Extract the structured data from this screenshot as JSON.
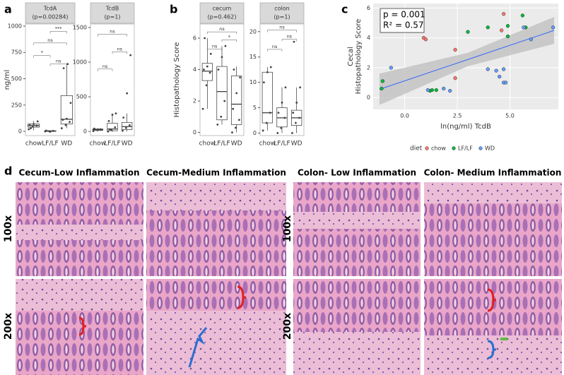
{
  "labels": [
    "a",
    "b",
    "c",
    "d"
  ],
  "chart_data": [
    {
      "type": "box",
      "title": "TcdA",
      "subtitle": "(p=0.00284)",
      "ylabel": "ng/ml",
      "categories": [
        "chow",
        "LF/LF",
        "WD"
      ],
      "boxes": [
        {
          "min": 10,
          "q1": 40,
          "median": 55,
          "q3": 70,
          "max": 100
        },
        {
          "min": -5,
          "q1": 0,
          "median": 3,
          "q3": 6,
          "max": 10
        },
        {
          "min": 30,
          "q1": 70,
          "median": 115,
          "q3": 340,
          "max": 640
        }
      ],
      "points": [
        [
          20,
          45,
          55,
          60,
          70,
          95,
          30
        ],
        [
          0,
          2,
          5,
          8,
          -3
        ],
        [
          30,
          60,
          90,
          110,
          120,
          270,
          600,
          640
        ]
      ],
      "comparisons": [
        {
          "from": "chow",
          "to": "LF/LF",
          "label": "*",
          "y": 720
        },
        {
          "from": "LF/LF",
          "to": "WD",
          "label": "ns",
          "y": 640
        },
        {
          "from": "chow",
          "to": "WD",
          "label": "ns",
          "y": 840
        },
        {
          "from": "LF/LF",
          "to": "WD",
          "label": "***",
          "y": 950
        }
      ],
      "ylim": [
        -40,
        1020
      ],
      "yticks": [
        0,
        250,
        500,
        750,
        1000
      ]
    },
    {
      "type": "box",
      "title": "TcdB",
      "subtitle": "(p=1)",
      "categories": [
        "chow",
        "LF/LF",
        "WD"
      ],
      "boxes": [
        {
          "min": 0,
          "q1": 15,
          "median": 25,
          "q3": 35,
          "max": 50
        },
        {
          "min": -5,
          "q1": 10,
          "median": 35,
          "q3": 120,
          "max": 260
        },
        {
          "min": 0,
          "q1": 25,
          "median": 70,
          "q3": 130,
          "max": 260
        }
      ],
      "points": [
        [
          5,
          20,
          30,
          40,
          25
        ],
        [
          0,
          20,
          60,
          150,
          240,
          260,
          30
        ],
        [
          10,
          50,
          90,
          200,
          550,
          1100
        ]
      ],
      "comparisons": [
        {
          "from": "chow",
          "to": "LF/LF",
          "label": "ns",
          "y": 900
        },
        {
          "from": "LF/LF",
          "to": "WD",
          "label": "ns",
          "y": 1150
        },
        {
          "from": "chow",
          "to": "WD",
          "label": "ns",
          "y": 1400
        }
      ],
      "ylim": [
        -60,
        1550
      ],
      "yticks": [
        0,
        500,
        1000,
        1500
      ]
    },
    {
      "type": "box",
      "title": "cecum",
      "subtitle": "(p=0.462)",
      "ylabel": "Histopathology Score",
      "categories": [
        "chow",
        "LF/LF",
        "WD"
      ],
      "boxes": [
        {
          "min": 1.5,
          "q1": 3.3,
          "median": 3.9,
          "q3": 4.4,
          "max": 6.0
        },
        {
          "min": 0.5,
          "q1": 0.8,
          "median": 2.6,
          "q3": 4.2,
          "max": 5.5
        },
        {
          "min": 0,
          "q1": 0.5,
          "median": 1.8,
          "q3": 3.6,
          "max": 4.2
        }
      ],
      "points": [
        [
          1.5,
          3.0,
          3.8,
          4.0,
          4.2,
          5.0,
          6.0
        ],
        [
          0.5,
          1.0,
          2.0,
          4.0,
          4.8,
          5.5
        ],
        [
          0,
          0.3,
          0.8,
          1.5,
          2.5,
          3.5,
          4.0
        ]
      ],
      "comparisons": [
        {
          "from": "chow",
          "to": "LF/LF",
          "label": "ns",
          "y": 5.3
        },
        {
          "from": "LF/LF",
          "to": "WD",
          "label": "*",
          "y": 5.9
        },
        {
          "from": "chow",
          "to": "WD",
          "label": "ns",
          "y": 6.4
        }
      ],
      "ylim": [
        -0.2,
        6.9
      ],
      "yticks": [
        0,
        2,
        4,
        6
      ]
    },
    {
      "type": "box",
      "title": "colon",
      "subtitle": "(p=1)",
      "categories": [
        "chow",
        "LF/LF",
        "WD"
      ],
      "boxes": [
        {
          "min": 0.5,
          "q1": 2,
          "median": 4,
          "q3": 12,
          "max": 13
        },
        {
          "min": 0,
          "q1": 1.2,
          "median": 3,
          "q3": 5,
          "max": 9
        },
        {
          "min": 0,
          "q1": 1.5,
          "median": 3,
          "q3": 4.5,
          "max": 9
        }
      ],
      "points": [
        [
          0.5,
          2,
          4,
          10,
          12,
          13
        ],
        [
          0,
          1,
          3,
          4,
          6,
          9
        ],
        [
          0,
          2,
          3,
          4,
          6,
          9,
          18
        ]
      ],
      "comparisons": [
        {
          "from": "chow",
          "to": "LF/LF",
          "label": "ns",
          "y": 16.5
        },
        {
          "from": "LF/LF",
          "to": "WD",
          "label": "ns",
          "y": 18.5
        },
        {
          "from": "chow",
          "to": "WD",
          "label": "ns",
          "y": 20.3
        }
      ],
      "ylim": [
        -0.5,
        21.5
      ],
      "yticks": [
        0,
        5,
        10,
        15,
        20
      ]
    },
    {
      "type": "scatter",
      "xlabel": "ln(ng/ml) TcdB",
      "ylabel": [
        "Cecal",
        "Histopathology Score"
      ],
      "annotations": [
        "p = 0.001",
        "R² = 0.57"
      ],
      "legend_title": "diet",
      "series": [
        {
          "name": "chow",
          "color": "#f8766d",
          "x": [
            0.9,
            1.0,
            2.4,
            2.4,
            4.7,
            4.6
          ],
          "y": [
            4.0,
            3.9,
            3.2,
            1.3,
            5.6,
            4.5
          ]
        },
        {
          "name": "LF/LF",
          "color": "#00ba38",
          "x": [
            -1.1,
            -1.05,
            1.2,
            1.3,
            1.5,
            3.0,
            3.95,
            4.9,
            5.6,
            5.75,
            4.9
          ],
          "y": [
            0.6,
            1.1,
            0.45,
            0.5,
            0.5,
            4.4,
            4.7,
            4.8,
            5.5,
            4.7,
            4.1
          ]
        },
        {
          "name": "WD",
          "color": "#619cff",
          "x": [
            -0.65,
            1.1,
            1.85,
            2.15,
            3.95,
            4.35,
            4.5,
            4.7,
            4.8,
            4.7,
            5.65,
            6.0,
            7.05
          ],
          "y": [
            2.0,
            0.5,
            0.6,
            0.45,
            1.9,
            1.8,
            1.4,
            1.0,
            1.0,
            1.9,
            4.7,
            3.9,
            4.7
          ]
        }
      ],
      "fit": {
        "x": [
          -1.2,
          3,
          7.1
        ],
        "y": [
          0.55,
          2.55,
          4.5
        ],
        "lower": [
          -0.5,
          2.1,
          3.6
        ],
        "upper": [
          1.6,
          3.0,
          5.4
        ],
        "color": "#3366ff"
      },
      "xlim": [
        -1.5,
        7.3
      ],
      "xticks": [
        {
          "value": 0,
          "label": "0.0"
        },
        {
          "value": 2.5,
          "label": "2.5"
        },
        {
          "value": 5,
          "label": "5.0"
        }
      ],
      "ylim": [
        -0.8,
        6.3
      ],
      "yticks": [
        0,
        2,
        4,
        6
      ],
      "grid": true
    }
  ],
  "histology": {
    "columns": [
      "Cecum-Low Inflammation",
      "Cecum-Medium Inflammation",
      "Colon- Low Inflammation",
      "Colon- Medium Inflammation"
    ],
    "rows": [
      "100x",
      "200x"
    ]
  }
}
